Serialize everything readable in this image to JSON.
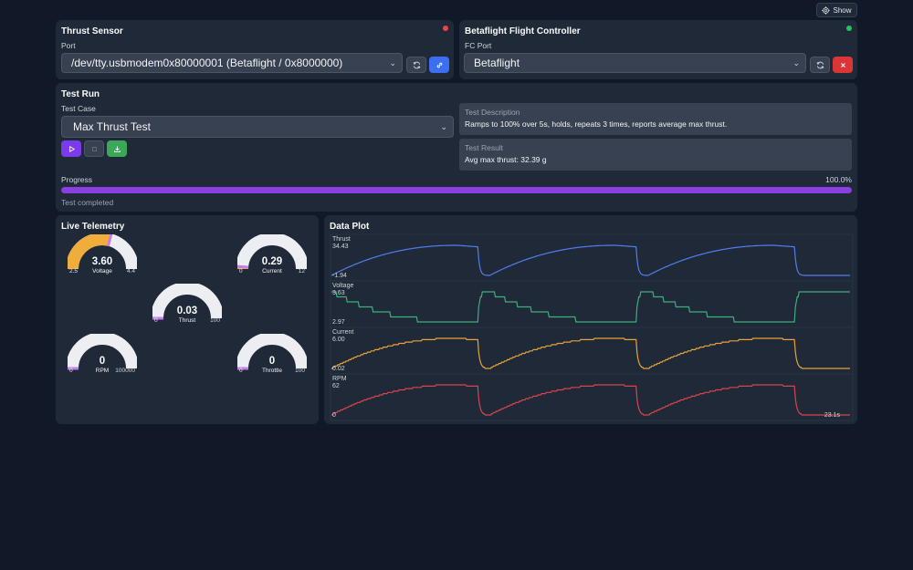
{
  "header": {
    "show_label": "Show"
  },
  "thrust_sensor": {
    "title": "Thrust Sensor",
    "port_label": "Port",
    "port_value": "/dev/tty.usbmodem0x80000001 (Betaflight / 0x8000000)",
    "status_color": "#ef4444"
  },
  "fc": {
    "title": "Betaflight Flight Controller",
    "port_label": "FC Port",
    "port_value": "Betaflight",
    "status_color": "#22c55e"
  },
  "test_run": {
    "title": "Test Run",
    "case_label": "Test Case",
    "case_value": "Max Thrust Test",
    "description_heading": "Test Description",
    "description_text": "Ramps to 100% over 5s, holds, repeats 3 times, reports average max thrust.",
    "result_heading": "Test Result",
    "result_text": "Avg max thrust: 32.39 g",
    "progress_label": "Progress",
    "progress_percent_text": "100.0%",
    "progress_fraction": 1.0,
    "status_text": "Test completed"
  },
  "telemetry": {
    "title": "Live Telemetry",
    "gauges": [
      {
        "name": "voltage",
        "label": "Voltage",
        "value": "3.60",
        "min": "2.5",
        "max": "4.4",
        "fraction": 0.58,
        "color": "#f0ad3c"
      },
      {
        "name": "current",
        "label": "Current",
        "value": "0.29",
        "min": "0",
        "max": "12",
        "fraction": 0.024,
        "color": "#f0ad3c"
      },
      {
        "name": "thrust",
        "label": "Thrust",
        "value": "0.03",
        "min": "0",
        "max": "100",
        "fraction": 0.0,
        "color": "#f0ad3c"
      },
      {
        "name": "rpm",
        "label": "RPM",
        "value": "0",
        "min": "0",
        "max": "100000",
        "fraction": 0.0,
        "color": "#f0ad3c"
      },
      {
        "name": "throttle",
        "label": "Throttle",
        "value": "0",
        "min": "0",
        "max": "100",
        "fraction": 0.0,
        "color": "#f0ad3c"
      }
    ]
  },
  "plot": {
    "title": "Data Plot",
    "time_label": "23.1s"
  },
  "chart_data": {
    "type": "line",
    "title": "Data Plot",
    "x_end": "23.1s",
    "series": [
      {
        "name": "Thrust",
        "max_label": "34.43",
        "min_label": "-1.94",
        "ymin": -1.94,
        "ymax": 34.43,
        "color": "#4f7ff0",
        "shape": "ramp"
      },
      {
        "name": "Voltage",
        "max_label": "3.63",
        "min_label": "2.97",
        "ymin": 2.97,
        "ymax": 3.63,
        "color": "#3fae7e",
        "shape": "invstep"
      },
      {
        "name": "Current",
        "max_label": "6.00",
        "min_label": "0.02",
        "ymin": 0.02,
        "ymax": 6.0,
        "color": "#e8a33a",
        "shape": "ramp"
      },
      {
        "name": "RPM",
        "max_label": "62",
        "min_label": "0",
        "ymin": 0,
        "ymax": 62,
        "color": "#d9454a",
        "shape": "ramp"
      }
    ]
  }
}
